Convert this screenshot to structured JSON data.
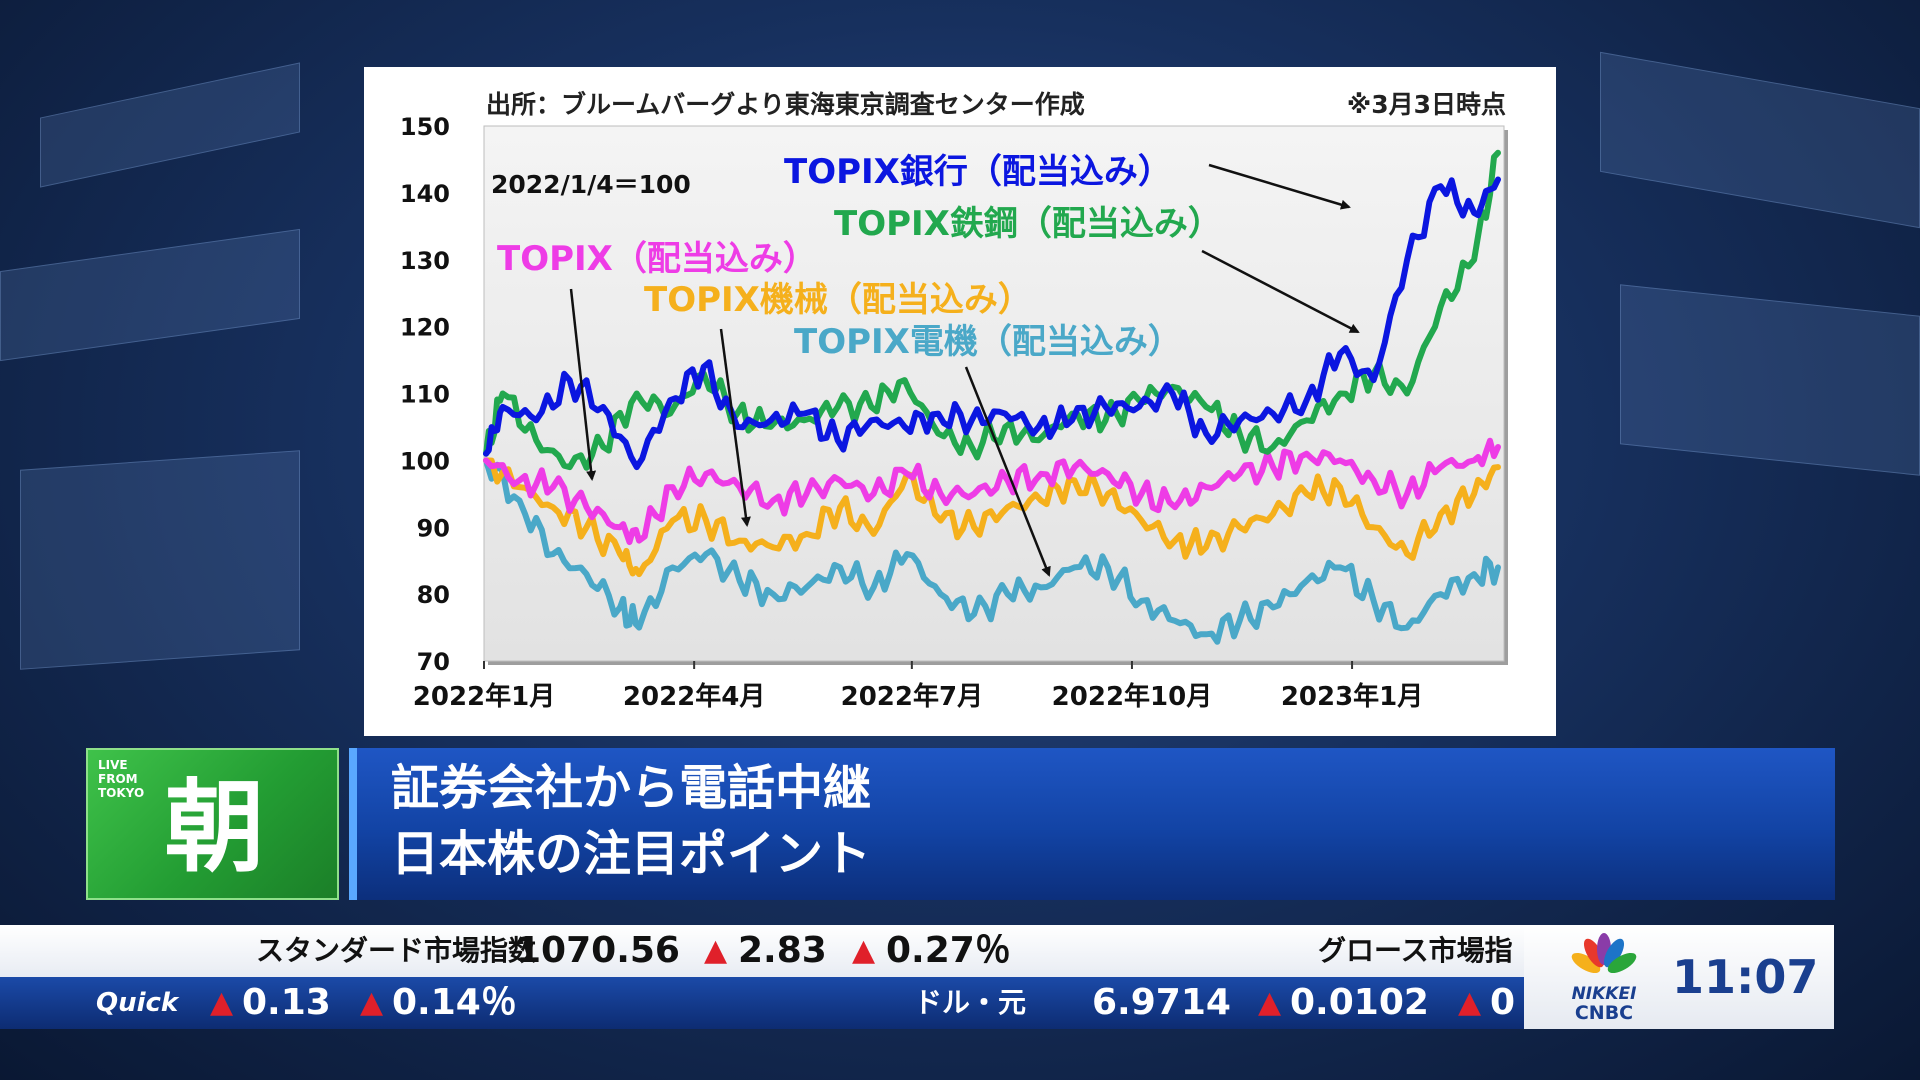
{
  "chart_data": {
    "type": "line",
    "source_note": "出所：ブルームバーグより東海東京調査センター作成",
    "date_note": "※3月3日時点",
    "base_note": "2022/1/4＝100",
    "ylim": [
      70,
      150
    ],
    "yticks": [
      "150",
      "140",
      "130",
      "120",
      "110",
      "100",
      "90",
      "80",
      "70"
    ],
    "xlim": [
      "2022-01-04",
      "2023-03-03"
    ],
    "xticks": [
      {
        "date": "2022-01-01",
        "label": "2022年1月"
      },
      {
        "date": "2022-04-01",
        "label": "2022年4月"
      },
      {
        "date": "2022-07-01",
        "label": "2022年7月"
      },
      {
        "date": "2022-10-01",
        "label": "2022年10月"
      },
      {
        "date": "2023-01-01",
        "label": "2023年1月"
      }
    ],
    "series": [
      {
        "name": "TOPIX電機（配当込み）",
        "color": "#4aa8c8",
        "points": [
          [
            "2022-01-04",
            100
          ],
          [
            "2022-01-18",
            94
          ],
          [
            "2022-02-01",
            86
          ],
          [
            "2022-02-15",
            83
          ],
          [
            "2022-03-01",
            78
          ],
          [
            "2022-03-09",
            75
          ],
          [
            "2022-03-23",
            84
          ],
          [
            "2022-04-06",
            86
          ],
          [
            "2022-04-20",
            82
          ],
          [
            "2022-05-04",
            80
          ],
          [
            "2022-05-18",
            81
          ],
          [
            "2022-06-01",
            84
          ],
          [
            "2022-06-15",
            81
          ],
          [
            "2022-06-29",
            86
          ],
          [
            "2022-07-13",
            80
          ],
          [
            "2022-07-27",
            77
          ],
          [
            "2022-08-10",
            80
          ],
          [
            "2022-08-24",
            81
          ],
          [
            "2022-09-07",
            84
          ],
          [
            "2022-09-21",
            84
          ],
          [
            "2022-10-05",
            79
          ],
          [
            "2022-10-19",
            76
          ],
          [
            "2022-11-01",
            74
          ],
          [
            "2022-11-15",
            76
          ],
          [
            "2022-11-29",
            78
          ],
          [
            "2022-12-13",
            82
          ],
          [
            "2022-12-27",
            84
          ],
          [
            "2023-01-10",
            79
          ],
          [
            "2023-01-24",
            75
          ],
          [
            "2023-02-07",
            80
          ],
          [
            "2023-02-21",
            83
          ],
          [
            "2023-03-03",
            84
          ]
        ]
      },
      {
        "name": "TOPIX機械（配当込み）",
        "color": "#f5b01c",
        "points": [
          [
            "2022-01-04",
            100
          ],
          [
            "2022-01-18",
            96
          ],
          [
            "2022-02-01",
            93
          ],
          [
            "2022-02-15",
            90
          ],
          [
            "2022-03-01",
            86
          ],
          [
            "2022-03-09",
            83
          ],
          [
            "2022-03-23",
            91
          ],
          [
            "2022-04-06",
            91
          ],
          [
            "2022-04-20",
            88
          ],
          [
            "2022-05-04",
            87
          ],
          [
            "2022-05-18",
            89
          ],
          [
            "2022-06-01",
            93
          ],
          [
            "2022-06-15",
            89
          ],
          [
            "2022-06-29",
            98
          ],
          [
            "2022-07-13",
            91
          ],
          [
            "2022-07-27",
            90
          ],
          [
            "2022-08-10",
            93
          ],
          [
            "2022-08-24",
            94
          ],
          [
            "2022-09-07",
            97
          ],
          [
            "2022-09-21",
            95
          ],
          [
            "2022-10-05",
            91
          ],
          [
            "2022-10-19",
            88
          ],
          [
            "2022-11-01",
            87
          ],
          [
            "2022-11-15",
            90
          ],
          [
            "2022-11-29",
            92
          ],
          [
            "2022-12-13",
            95
          ],
          [
            "2022-12-27",
            96
          ],
          [
            "2023-01-10",
            90
          ],
          [
            "2023-01-24",
            86
          ],
          [
            "2023-02-07",
            92
          ],
          [
            "2023-02-21",
            95
          ],
          [
            "2023-03-03",
            99
          ]
        ]
      },
      {
        "name": "TOPIX（配当込み）",
        "color": "#ee3ce6",
        "points": [
          [
            "2022-01-04",
            100
          ],
          [
            "2022-01-18",
            97
          ],
          [
            "2022-02-01",
            96
          ],
          [
            "2022-02-15",
            93
          ],
          [
            "2022-03-01",
            90
          ],
          [
            "2022-03-09",
            88
          ],
          [
            "2022-03-23",
            96
          ],
          [
            "2022-04-06",
            98
          ],
          [
            "2022-04-20",
            96
          ],
          [
            "2022-05-04",
            94
          ],
          [
            "2022-05-18",
            95
          ],
          [
            "2022-06-01",
            97
          ],
          [
            "2022-06-15",
            95
          ],
          [
            "2022-06-29",
            98
          ],
          [
            "2022-07-13",
            95
          ],
          [
            "2022-07-27",
            95
          ],
          [
            "2022-08-10",
            97
          ],
          [
            "2022-08-24",
            98
          ],
          [
            "2022-09-07",
            99
          ],
          [
            "2022-09-21",
            98
          ],
          [
            "2022-10-05",
            95
          ],
          [
            "2022-10-19",
            93
          ],
          [
            "2022-11-01",
            96
          ],
          [
            "2022-11-15",
            98
          ],
          [
            "2022-11-29",
            99
          ],
          [
            "2022-12-13",
            101
          ],
          [
            "2022-12-27",
            100
          ],
          [
            "2023-01-10",
            97
          ],
          [
            "2023-01-24",
            95
          ],
          [
            "2023-02-07",
            99
          ],
          [
            "2023-02-21",
            100
          ],
          [
            "2023-03-03",
            102
          ]
        ]
      },
      {
        "name": "TOPIX鉄鋼（配当込み）",
        "color": "#22a84e",
        "points": [
          [
            "2022-01-04",
            101
          ],
          [
            "2022-01-11",
            110
          ],
          [
            "2022-01-25",
            103
          ],
          [
            "2022-02-08",
            99
          ],
          [
            "2022-02-22",
            102
          ],
          [
            "2022-03-08",
            110
          ],
          [
            "2022-03-22",
            107
          ],
          [
            "2022-04-05",
            113
          ],
          [
            "2022-04-19",
            107
          ],
          [
            "2022-05-03",
            105
          ],
          [
            "2022-05-17",
            106
          ],
          [
            "2022-05-31",
            108
          ],
          [
            "2022-06-14",
            108
          ],
          [
            "2022-06-28",
            112
          ],
          [
            "2022-07-12",
            104
          ],
          [
            "2022-07-26",
            102
          ],
          [
            "2022-08-09",
            105
          ],
          [
            "2022-08-23",
            103
          ],
          [
            "2022-09-06",
            107
          ],
          [
            "2022-09-20",
            106
          ],
          [
            "2022-10-04",
            109
          ],
          [
            "2022-10-18",
            111
          ],
          [
            "2022-11-01",
            108
          ],
          [
            "2022-11-15",
            104
          ],
          [
            "2022-11-29",
            102
          ],
          [
            "2022-12-13",
            106
          ],
          [
            "2022-12-27",
            110
          ],
          [
            "2023-01-10",
            113
          ],
          [
            "2023-01-24",
            110
          ],
          [
            "2023-02-07",
            123
          ],
          [
            "2023-02-21",
            130
          ],
          [
            "2023-03-03",
            146
          ]
        ]
      },
      {
        "name": "TOPIX銀行（配当込み）",
        "color": "#0b16e0",
        "points": [
          [
            "2022-01-04",
            101
          ],
          [
            "2022-01-11",
            108
          ],
          [
            "2022-01-25",
            106
          ],
          [
            "2022-02-08",
            112
          ],
          [
            "2022-02-22",
            108
          ],
          [
            "2022-03-08",
            99
          ],
          [
            "2022-03-22",
            109
          ],
          [
            "2022-04-05",
            114
          ],
          [
            "2022-04-19",
            105
          ],
          [
            "2022-05-03",
            106
          ],
          [
            "2022-05-17",
            107
          ],
          [
            "2022-05-31",
            103
          ],
          [
            "2022-06-14",
            106
          ],
          [
            "2022-06-28",
            105
          ],
          [
            "2022-07-12",
            107
          ],
          [
            "2022-07-26",
            106
          ],
          [
            "2022-08-09",
            107
          ],
          [
            "2022-08-23",
            105
          ],
          [
            "2022-09-06",
            106
          ],
          [
            "2022-09-20",
            108
          ],
          [
            "2022-10-04",
            108
          ],
          [
            "2022-10-18",
            110
          ],
          [
            "2022-11-01",
            104
          ],
          [
            "2022-11-15",
            106
          ],
          [
            "2022-11-29",
            107
          ],
          [
            "2022-12-13",
            109
          ],
          [
            "2022-12-27",
            116
          ],
          [
            "2023-01-10",
            112
          ],
          [
            "2023-01-24",
            130
          ],
          [
            "2023-02-07",
            141
          ],
          [
            "2023-02-21",
            137
          ],
          [
            "2023-03-03",
            142
          ]
        ]
      }
    ],
    "annotations": [
      {
        "text": "TOPIX銀行（配当込み）",
        "series": "TOPIX銀行（配当込み）"
      },
      {
        "text": "TOPIX鉄鋼（配当込み）",
        "series": "TOPIX鉄鋼（配当込み）"
      },
      {
        "text": "TOPIX（配当込み）",
        "series": "TOPIX（配当込み）"
      },
      {
        "text": "TOPIX機械（配当込み）",
        "series": "TOPIX機械（配当込み）"
      },
      {
        "text": "TOPIX電機（配当込み）",
        "series": "TOPIX電機（配当込み）"
      }
    ]
  },
  "badge": {
    "live_line1": "LIVE",
    "live_line2": "FROM",
    "live_line3": "TOKYO",
    "char": "朝",
    "color": "#2aa63a"
  },
  "headline": {
    "line1": "証券会社から電話中継",
    "line2": "日本株の注目ポイント"
  },
  "ticker_top": {
    "label1": "スタンダード市場指数",
    "value1": "1070.56",
    "change1": "2.83",
    "pct1": "0.27％",
    "label2": "グロース市場指"
  },
  "ticker_bottom": {
    "logo": "Quick",
    "change_a": "0.13",
    "pct_a": "0.14％",
    "label": "ドル・元",
    "value": "6.9714",
    "change_b": "0.0102",
    "pct_b_partial": "0"
  },
  "ticker_up_symbol": "▲",
  "network": {
    "logo_line1": "NIKKEI",
    "logo_line2": "CNBC",
    "clock": "11:07"
  }
}
